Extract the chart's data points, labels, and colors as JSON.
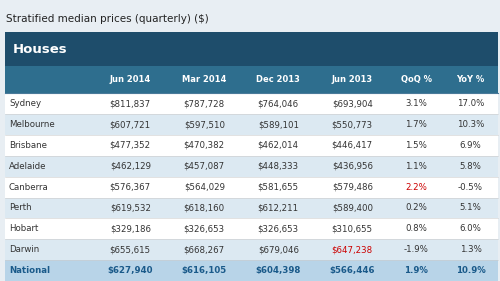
{
  "title": "Stratified median prices (quarterly) ($)",
  "section_header": "Houses",
  "columns": [
    "",
    "Jun 2014",
    "Mar 2014",
    "Dec 2013",
    "Jun 2013",
    "QoQ %",
    "YoY %"
  ],
  "rows": [
    [
      "Sydney",
      "$811,837",
      "$787,728",
      "$764,046",
      "$693,904",
      "3.1%",
      "17.0%"
    ],
    [
      "Melbourne",
      "$607,721",
      "$597,510",
      "$589,101",
      "$550,773",
      "1.7%",
      "10.3%"
    ],
    [
      "Brisbane",
      "$477,352",
      "$470,382",
      "$462,014",
      "$446,417",
      "1.5%",
      "6.9%"
    ],
    [
      "Adelaide",
      "$462,129",
      "$457,087",
      "$448,333",
      "$436,956",
      "1.1%",
      "5.8%"
    ],
    [
      "Canberra",
      "$576,367",
      "$564,029",
      "$581,655",
      "$579,486",
      "2.2%",
      "-0.5%"
    ],
    [
      "Perth",
      "$619,532",
      "$618,160",
      "$612,211",
      "$589,400",
      "0.2%",
      "5.1%"
    ],
    [
      "Hobart",
      "$329,186",
      "$326,653",
      "$326,653",
      "$310,655",
      "0.8%",
      "6.0%"
    ],
    [
      "Darwin",
      "$655,615",
      "$668,267",
      "$679,046",
      "$647,238",
      "-1.9%",
      "1.3%"
    ],
    [
      "National",
      "$627,940",
      "$616,105",
      "$604,398",
      "$566,446",
      "1.9%",
      "10.9%"
    ]
  ],
  "negative_cells": {
    "Darwin": [
      4
    ],
    "Canberra": [
      5
    ]
  },
  "national_row": "National",
  "title_bg": "#e8eef3",
  "section_bg": "#1e4d6b",
  "col_header_bg": "#2e6e8e",
  "alt_row_bg": "#dce9f2",
  "white_row_bg": "#ffffff",
  "national_row_bg": "#b8d4e8",
  "title_color": "#222222",
  "header_text_color": "#ffffff",
  "normal_text_color": "#333333",
  "national_text_color": "#1a5a8a",
  "negative_color": "#cc0000",
  "fig_bg": "#e8eef3"
}
